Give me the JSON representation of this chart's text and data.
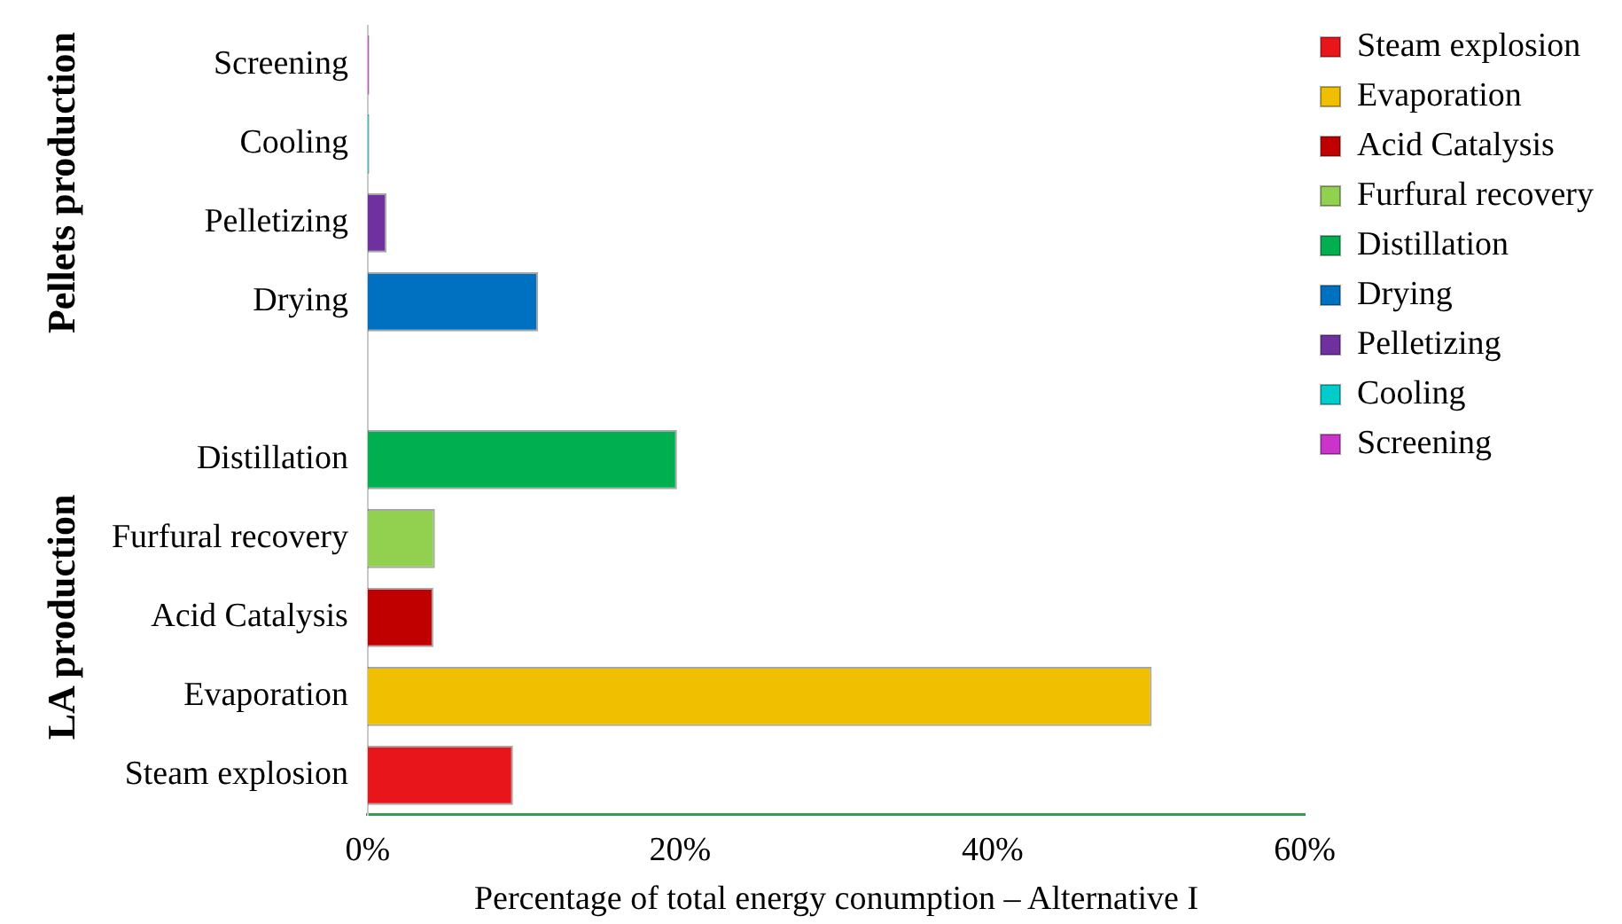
{
  "chart_data": {
    "type": "bar",
    "orientation": "horizontal",
    "xlabel": "Percentage of total energy conumption – Alternative I",
    "categories": [
      "Screening",
      "Cooling",
      "Pelletizing",
      "Drying",
      null,
      "Distillation",
      "Furfural recovery",
      "Acid Catalysis",
      "Evaporation",
      "Steam explosion"
    ],
    "series": [
      {
        "name": "Steam explosion",
        "color": "#e8151b",
        "values": [
          null,
          null,
          null,
          null,
          null,
          null,
          null,
          null,
          null,
          9.3
        ]
      },
      {
        "name": "Evaporation",
        "color": "#f0c000",
        "values": [
          null,
          null,
          null,
          null,
          null,
          null,
          null,
          null,
          50.2,
          null
        ]
      },
      {
        "name": "Acid Catalysis",
        "color": "#c00000",
        "values": [
          null,
          null,
          null,
          null,
          null,
          null,
          null,
          4.2,
          null,
          null
        ]
      },
      {
        "name": "Furfural recovery",
        "color": "#92d050",
        "values": [
          null,
          null,
          null,
          null,
          null,
          null,
          4.3,
          null,
          null,
          null
        ]
      },
      {
        "name": "Distillation",
        "color": "#00b050",
        "values": [
          null,
          null,
          null,
          null,
          null,
          19.8,
          null,
          null,
          null,
          null
        ]
      },
      {
        "name": "Drying",
        "color": "#0070c0",
        "values": [
          null,
          null,
          null,
          10.9,
          null,
          null,
          null,
          null,
          null,
          null
        ]
      },
      {
        "name": "Pelletizing",
        "color": "#7030a0",
        "values": [
          null,
          null,
          1.2,
          null,
          null,
          null,
          null,
          null,
          null,
          null
        ]
      },
      {
        "name": "Cooling",
        "color": "#00cccc",
        "values": [
          null,
          0.1,
          null,
          null,
          null,
          null,
          null,
          null,
          null,
          null
        ]
      },
      {
        "name": "Screening",
        "color": "#cc33cc",
        "values": [
          0.1,
          null,
          null,
          null,
          null,
          null,
          null,
          null,
          null,
          null
        ]
      }
    ],
    "xlim": [
      0,
      60
    ],
    "xticks": [
      {
        "value": 0,
        "label": "0%"
      },
      {
        "value": 20,
        "label": "20%"
      },
      {
        "value": 40,
        "label": "40%"
      },
      {
        "value": 60,
        "label": "60%"
      }
    ],
    "annotations": [
      "Pellets production",
      "LA production"
    ],
    "grid": false,
    "legend": "top right"
  }
}
